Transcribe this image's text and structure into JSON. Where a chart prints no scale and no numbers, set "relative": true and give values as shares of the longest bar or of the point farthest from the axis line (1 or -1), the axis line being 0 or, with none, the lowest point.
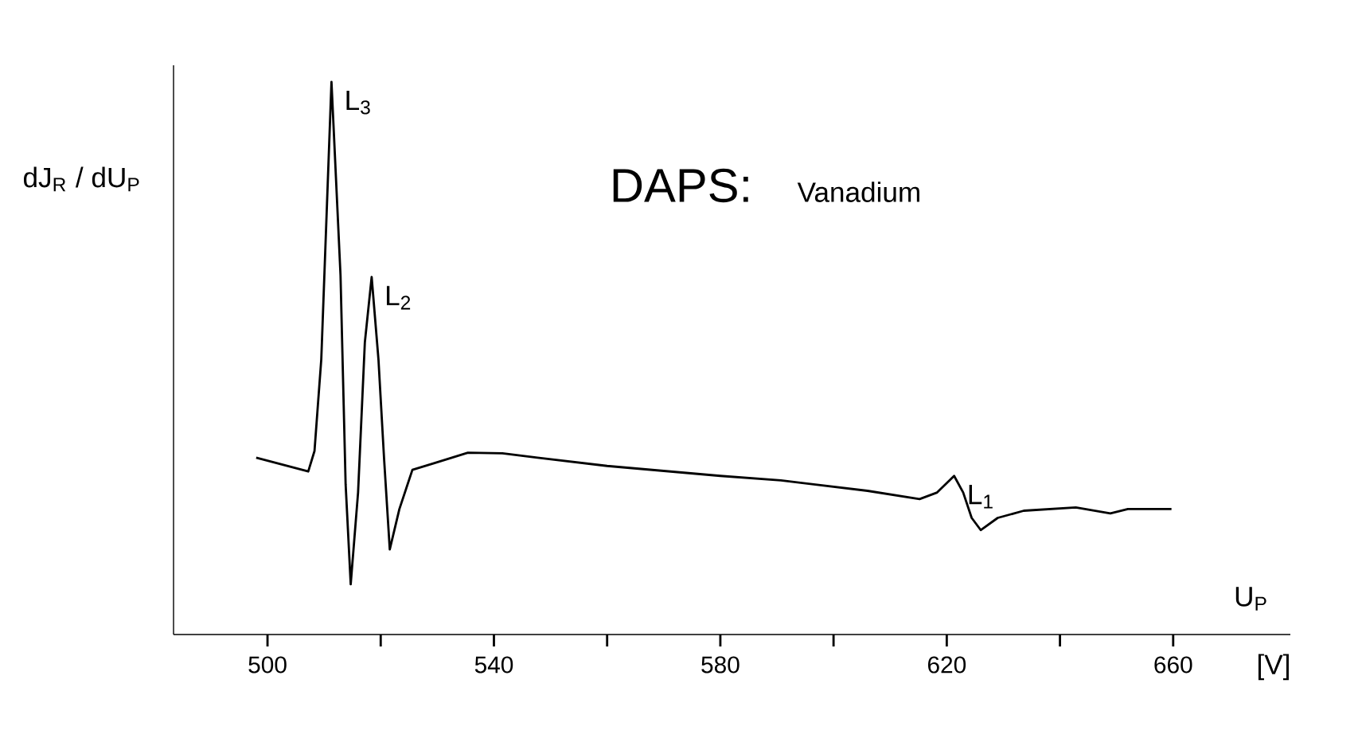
{
  "chart_data": {
    "type": "line",
    "title": "DAPS:",
    "subtitle": "Vanadium",
    "xlabel": "U$_{P}$",
    "ylabel": "dJ$_{R}$ / dU$_{P}$",
    "relative": true,
    "color": "#000000",
    "xlim": [
      483.4,
      680.7
    ],
    "xticks": [
      500,
      {
        "value": 520,
        "label": null
      },
      540,
      {
        "value": 560,
        "label": null
      },
      580,
      {
        "value": 600,
        "label": null
      },
      620,
      {
        "value": 640,
        "label": null
      },
      660
    ],
    "x": [
      498,
      507.2,
      508.3,
      509.5,
      511.3,
      512.9,
      513.8,
      514.7,
      516,
      517.2,
      518.4,
      519.6,
      520.6,
      521.6,
      523.3,
      525.6,
      529.4,
      535.4,
      541.5,
      547.7,
      560,
      580,
      590.7,
      606,
      615.2,
      618.3,
      621.3,
      622.9,
      624.4,
      626,
      629,
      633.6,
      642.8,
      648.9,
      652,
      659.7
    ],
    "values": [
      0.32,
      0.295,
      0.332,
      0.498,
      1.0,
      0.65,
      0.272,
      0.091,
      0.257,
      0.529,
      0.647,
      0.498,
      0.317,
      0.154,
      0.227,
      0.298,
      0.31,
      0.329,
      0.328,
      0.32,
      0.305,
      0.287,
      0.279,
      0.26,
      0.245,
      0.257,
      0.287,
      0.257,
      0.211,
      0.189,
      0.211,
      0.224,
      0.23,
      0.219,
      0.227,
      0.227
    ],
    "annotations": [
      {
        "text": "L$_{3}$",
        "x": 511.3,
        "y": 1.0
      },
      {
        "text": "L$_{2}$",
        "x": 518.4,
        "y": 0.647
      },
      {
        "text": "L$_{1}$",
        "x": 621.3,
        "y": 0.287
      },
      "[V]"
    ]
  }
}
